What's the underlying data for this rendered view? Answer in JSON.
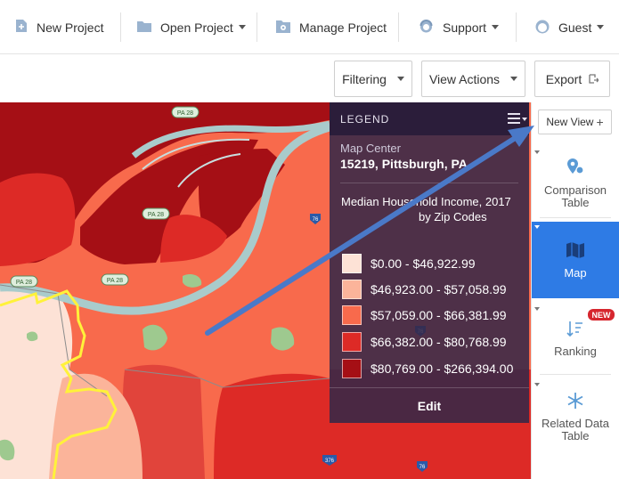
{
  "nav": {
    "new_project": "New Project",
    "open_project": "Open Project",
    "manage_project": "Manage Project",
    "support": "Support",
    "guest": "Guest"
  },
  "toolbar": {
    "filtering": "Filtering",
    "view_actions": "View Actions",
    "export": "Export"
  },
  "map": {
    "road_labels": [
      "PA 28",
      "PA 28",
      "PA 28",
      "PA 28",
      "76",
      "76",
      "376",
      "76"
    ],
    "colors": {
      "bin1": "#fde2d6",
      "bin2": "#fbb49a",
      "bin3": "#f86a4c",
      "bin4": "#dd2a26",
      "bin5": "#a50f15",
      "water": "#a9cbcb",
      "park": "#9ec98f",
      "boundary": "#fff23a",
      "arrow": "#4a79c8"
    }
  },
  "legend": {
    "header": "LEGEND",
    "center_label": "Map Center",
    "center_value": "15219, Pittsburgh, PA",
    "title_line1": "Median Household Income, 2017",
    "title_line2": "by Zip Codes",
    "bins": [
      {
        "label": "$0.00 - $46,922.99",
        "color": "#fde2d6"
      },
      {
        "label": "$46,923.00 - $57,058.99",
        "color": "#fbb49a"
      },
      {
        "label": "$57,059.00 - $66,381.99",
        "color": "#f86a4c"
      },
      {
        "label": "$66,382.00 - $80,768.99",
        "color": "#dd2a26"
      },
      {
        "label": "$80,769.00 - $266,394.00",
        "color": "#a50f15"
      }
    ],
    "edit": "Edit"
  },
  "sidebar": {
    "new_view": "New View",
    "comparison_line1": "Comparison",
    "comparison_line2": "Table",
    "map": "Map",
    "ranking": "Ranking",
    "ranking_badge": "NEW",
    "related_line1": "Related Data",
    "related_line2": "Table",
    "accent": "#2e7be5"
  }
}
